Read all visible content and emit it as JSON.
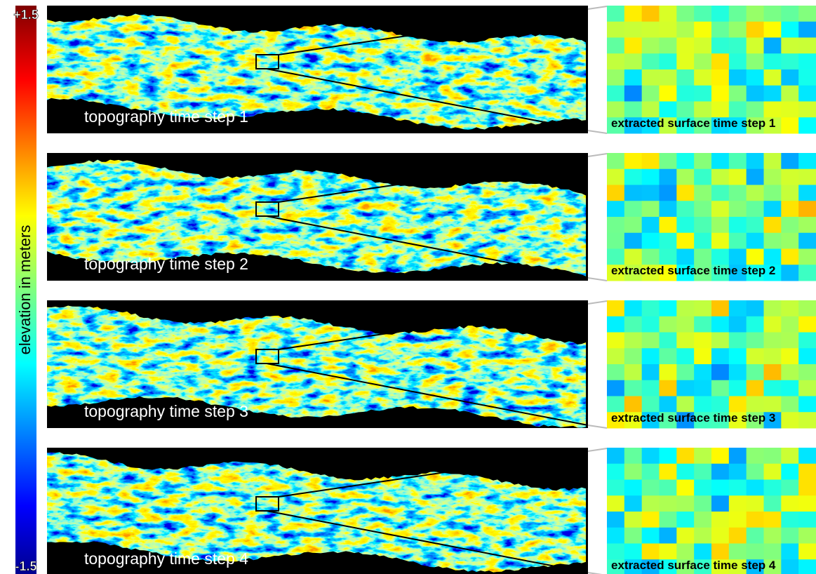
{
  "colorbar": {
    "label": "elevation in meters",
    "max": {
      "value": 1.5,
      "label": "+1.5"
    },
    "min": {
      "value": -1.5,
      "label": "-1.5"
    }
  },
  "panels": [
    {
      "topography_label": "topography time step 1",
      "surface_label": "extracted surface time step 1"
    },
    {
      "topography_label": "topography time step 2",
      "surface_label": "extracted surface time step 2"
    },
    {
      "topography_label": "topography time step 3",
      "surface_label": "extracted surface time step 3"
    },
    {
      "topography_label": "topography time step 4",
      "surface_label": "extracted surface time step 4"
    }
  ]
}
